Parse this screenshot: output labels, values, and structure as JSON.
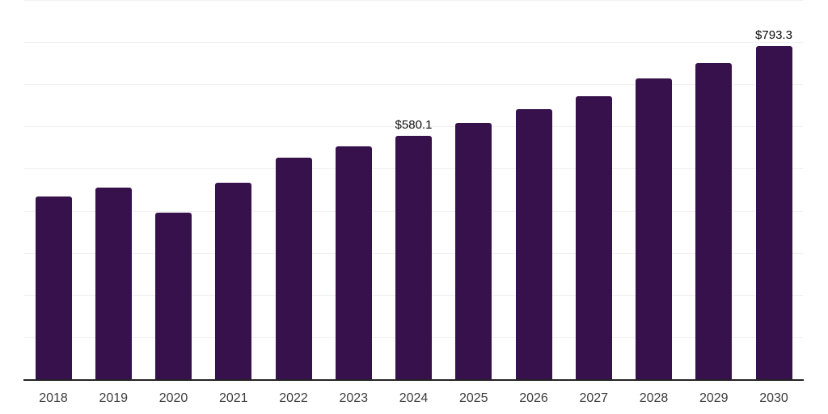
{
  "chart": {
    "bar_color": "#36114B",
    "gridline_color": "#f1f1f3",
    "axis_color": "#242424",
    "data_label_color": "#0d0d0d",
    "tick_label_color": "#3c3c3c"
  },
  "chart_data": {
    "type": "bar",
    "title": "",
    "xlabel": "",
    "ylabel": "",
    "categories": [
      "2018",
      "2019",
      "2020",
      "2021",
      "2022",
      "2023",
      "2024",
      "2025",
      "2026",
      "2027",
      "2028",
      "2029",
      "2030"
    ],
    "values": [
      435,
      456,
      397,
      469,
      527,
      554,
      580.1,
      610,
      642,
      674,
      715,
      753,
      793.3
    ],
    "data_labels": [
      {
        "index": 6,
        "text": "$580.1"
      },
      {
        "index": 12,
        "text": "$793.3"
      }
    ],
    "ylim": [
      0,
      900
    ],
    "grid_step": 100,
    "grid": true,
    "legend": false,
    "y_axis_labels_visible": false,
    "currency_prefix": "$"
  }
}
